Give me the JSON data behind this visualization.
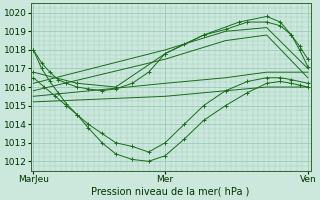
{
  "xlabel": "Pression niveau de la mer( hPa )",
  "bg_color": "#cce8dd",
  "grid_color": "#99ccbb",
  "line_color": "#1a6b1a",
  "ylim": [
    1011.5,
    1020.5
  ],
  "yticks": [
    1012,
    1013,
    1014,
    1015,
    1016,
    1017,
    1018,
    1019,
    1020
  ],
  "xtick_labels": [
    "MarJeu",
    "Mer",
    "Ven"
  ],
  "xtick_positions": [
    0.0,
    0.48,
    1.0
  ],
  "lines": [
    {
      "x": [
        0.0,
        0.03,
        0.06,
        0.09,
        0.12,
        0.16,
        0.2,
        0.25,
        0.3,
        0.36,
        0.42,
        0.48,
        0.55,
        0.62,
        0.7,
        0.78,
        0.85,
        0.9,
        0.94,
        0.97,
        1.0
      ],
      "y": [
        1018.0,
        1017.3,
        1016.8,
        1016.4,
        1016.2,
        1016.0,
        1015.9,
        1015.8,
        1015.9,
        1016.2,
        1016.8,
        1017.8,
        1018.3,
        1018.8,
        1019.1,
        1019.5,
        1019.5,
        1019.3,
        1018.8,
        1018.0,
        1017.1
      ],
      "marker": true
    },
    {
      "x": [
        0.0,
        0.03,
        0.06,
        0.09,
        0.12,
        0.16,
        0.2,
        0.25,
        0.3,
        0.36,
        0.42,
        0.48,
        0.55,
        0.62,
        0.7,
        0.78,
        0.85,
        0.9,
        0.94,
        0.97,
        1.0
      ],
      "y": [
        1018.0,
        1017.0,
        1016.3,
        1015.7,
        1015.1,
        1014.5,
        1013.8,
        1013.0,
        1012.4,
        1012.1,
        1012.0,
        1012.3,
        1013.2,
        1014.2,
        1015.0,
        1015.7,
        1016.2,
        1016.3,
        1016.2,
        1016.1,
        1016.0
      ],
      "marker": true
    },
    {
      "x": [
        0.0,
        0.04,
        0.08,
        0.12,
        0.16,
        0.2,
        0.25,
        0.3,
        0.36,
        0.42,
        0.48,
        0.55,
        0.62,
        0.7,
        0.78,
        0.85,
        0.9,
        0.94,
        1.0
      ],
      "y": [
        1016.5,
        1016.0,
        1015.5,
        1015.0,
        1014.5,
        1014.0,
        1013.5,
        1013.0,
        1012.8,
        1012.5,
        1013.0,
        1014.0,
        1015.0,
        1015.8,
        1016.3,
        1016.5,
        1016.5,
        1016.4,
        1016.2
      ],
      "marker": true
    },
    {
      "x": [
        0.0,
        0.48,
        0.7,
        0.85,
        1.0
      ],
      "y": [
        1016.2,
        1018.0,
        1019.0,
        1019.2,
        1017.0
      ],
      "marker": false
    },
    {
      "x": [
        0.0,
        0.48,
        0.7,
        0.85,
        1.0
      ],
      "y": [
        1015.8,
        1017.5,
        1018.5,
        1018.8,
        1016.5
      ],
      "marker": false
    },
    {
      "x": [
        0.0,
        0.48,
        0.7,
        0.85,
        1.0
      ],
      "y": [
        1015.2,
        1015.5,
        1015.8,
        1016.0,
        1016.0
      ],
      "marker": false
    },
    {
      "x": [
        0.0,
        0.48,
        0.7,
        0.85,
        1.0
      ],
      "y": [
        1015.5,
        1016.2,
        1016.5,
        1016.8,
        1016.8
      ],
      "marker": false
    },
    {
      "x": [
        0.0,
        0.16,
        0.3,
        0.48,
        0.62,
        0.75,
        0.85,
        0.9,
        0.94,
        0.97,
        1.0
      ],
      "y": [
        1016.8,
        1016.2,
        1016.0,
        1017.8,
        1018.8,
        1019.5,
        1019.8,
        1019.5,
        1018.8,
        1018.2,
        1017.5
      ],
      "marker": true
    }
  ]
}
